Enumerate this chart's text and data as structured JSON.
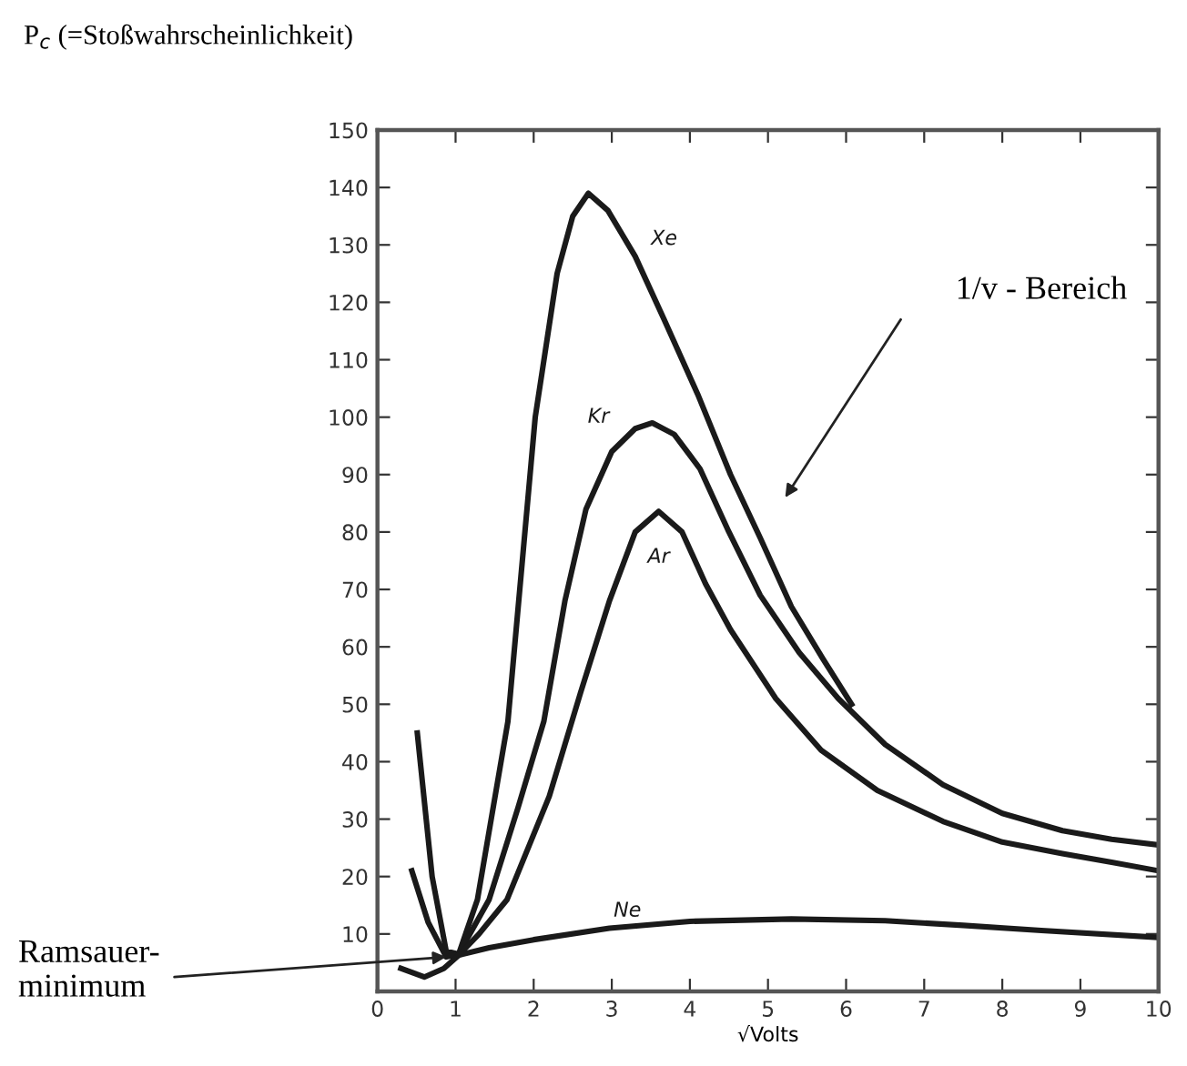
{
  "chart_data": {
    "type": "line",
    "title": "P$_{c}$ (=Stoßwahrscheinlichkeit)",
    "xlabel": "√Volts",
    "xlim": [
      0,
      10
    ],
    "ylim": [
      0,
      150
    ],
    "xticks": [
      0,
      1,
      2,
      3,
      4,
      5,
      6,
      7,
      8,
      9,
      10
    ],
    "yticks": [
      {
        "value": 0,
        "label": null
      },
      10,
      20,
      30,
      40,
      50,
      60,
      70,
      80,
      90,
      100,
      110,
      120,
      130,
      140,
      150
    ],
    "grid": false,
    "legend": false,
    "marker": "none",
    "line_style": "solid",
    "series": [
      {
        "name": "Xe",
        "color": "#1a1a1a",
        "x": [
          0.51,
          0.7,
          0.88,
          1.04,
          1.28,
          1.67,
          2.02,
          2.3,
          2.5,
          2.7,
          2.95,
          3.3,
          3.67,
          4.1,
          4.52,
          4.9,
          5.3,
          5.7,
          6.07
        ],
        "values": [
          45,
          20,
          7,
          6.5,
          16,
          47,
          100,
          125,
          135,
          139,
          136,
          128,
          117,
          104,
          90,
          79,
          67,
          58,
          50
        ]
      },
      {
        "name": "Kr",
        "color": "#1a1a1a",
        "x": [
          0.44,
          0.65,
          0.88,
          1.04,
          1.43,
          1.8,
          2.13,
          2.4,
          2.67,
          3.0,
          3.3,
          3.52,
          3.8,
          4.13,
          4.5,
          4.9,
          5.4,
          5.9,
          6.5,
          7.24,
          8.0,
          8.77,
          9.4,
          10.0
        ],
        "values": [
          21,
          12,
          6,
          6.5,
          16,
          32,
          47,
          68,
          84,
          94,
          98,
          99,
          97,
          91,
          80,
          69,
          59,
          51,
          43,
          36,
          31,
          28,
          26.5,
          25.5
        ]
      },
      {
        "name": "Ar",
        "color": "#1a1a1a",
        "x": [
          0.3,
          0.6,
          0.85,
          1.04,
          1.3,
          1.66,
          2.2,
          2.6,
          2.97,
          3.3,
          3.6,
          3.9,
          4.2,
          4.52,
          5.1,
          5.68,
          6.4,
          7.24,
          8.0,
          8.77,
          9.4,
          10.0
        ],
        "values": [
          4,
          2.5,
          4,
          6.3,
          10,
          16,
          34,
          52,
          68,
          80,
          83.6,
          80,
          71,
          63,
          51,
          42,
          35,
          29.6,
          26,
          24,
          22.5,
          21
        ]
      },
      {
        "name": "Ne",
        "color": "#1a1a1a",
        "x": [
          1.04,
          1.43,
          2.0,
          2.97,
          4.0,
          5.3,
          6.5,
          7.5,
          8.5,
          10.0
        ],
        "values": [
          6.3,
          7.6,
          9,
          11,
          12.2,
          12.6,
          12.3,
          11.5,
          10.6,
          9.4
        ]
      }
    ],
    "annotations": [
      "1/v - Bereich",
      {
        "text": "Ramsauer-\nminimum",
        "x": 0.88,
        "y": 6
      }
    ]
  }
}
